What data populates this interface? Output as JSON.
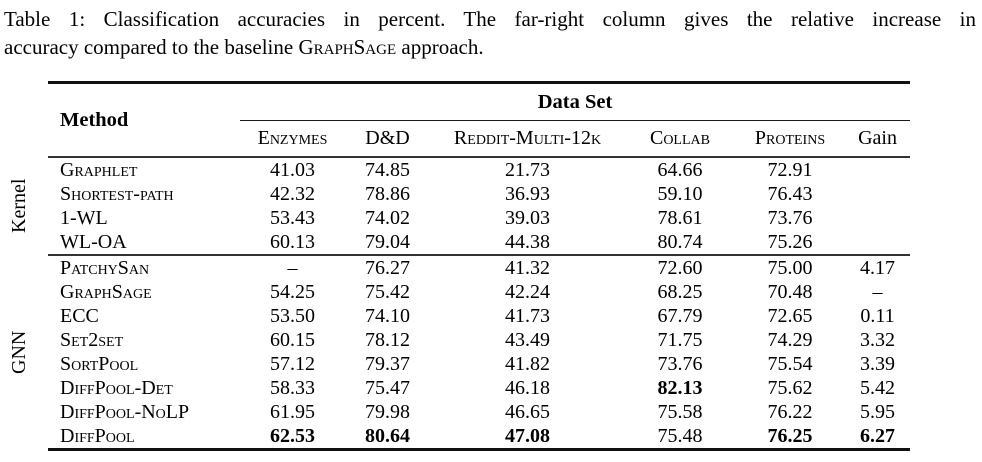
{
  "colors": {
    "text": "#000000",
    "background": "#ffffff",
    "rule": "#111111"
  },
  "caption": {
    "line1": "Table 1: Classification accuracies in percent. The far-right column gives the relative increase in",
    "line2_pre": "accuracy compared to the baseline ",
    "line2_brand": "GraphSage",
    "line2_post": " approach."
  },
  "table": {
    "method_header": "Method",
    "dataset_header": "Data Set",
    "columns": [
      {
        "label": "Enzymes",
        "smallcaps": true
      },
      {
        "label": "D&D",
        "smallcaps": true
      },
      {
        "label": "Reddit-Multi-12k",
        "smallcaps": true
      },
      {
        "label": "Collab",
        "smallcaps": true
      },
      {
        "label": "Proteins",
        "smallcaps": true
      },
      {
        "label": "Gain",
        "smallcaps": false
      }
    ],
    "groups": [
      {
        "label": "Kernel",
        "rows": [
          {
            "method": "Graphlet",
            "values": [
              "41.03",
              "74.85",
              "21.73",
              "64.66",
              "72.91",
              ""
            ],
            "bold": []
          },
          {
            "method": "Shortest-path",
            "values": [
              "42.32",
              "78.86",
              "36.93",
              "59.10",
              "76.43",
              ""
            ],
            "bold": []
          },
          {
            "method": "1-WL",
            "values": [
              "53.43",
              "74.02",
              "39.03",
              "78.61",
              "73.76",
              ""
            ],
            "bold": []
          },
          {
            "method": "WL-OA",
            "values": [
              "60.13",
              "79.04",
              "44.38",
              "80.74",
              "75.26",
              ""
            ],
            "bold": []
          }
        ]
      },
      {
        "label": "GNN",
        "rows": [
          {
            "method": "PatchySan",
            "values": [
              "–",
              "76.27",
              "41.32",
              "72.60",
              "75.00",
              "4.17"
            ],
            "bold": []
          },
          {
            "method": "GraphSage",
            "values": [
              "54.25",
              "75.42",
              "42.24",
              "68.25",
              "70.48",
              "–"
            ],
            "bold": []
          },
          {
            "method": "ECC",
            "values": [
              "53.50",
              "74.10",
              "41.73",
              "67.79",
              "72.65",
              "0.11"
            ],
            "bold": []
          },
          {
            "method": "Set2set",
            "values": [
              "60.15",
              "78.12",
              "43.49",
              "71.75",
              "74.29",
              "3.32"
            ],
            "bold": []
          },
          {
            "method": "SortPool",
            "values": [
              "57.12",
              "79.37",
              "41.82",
              "73.76",
              "75.54",
              "3.39"
            ],
            "bold": []
          },
          {
            "method": "DiffPool-Det",
            "values": [
              "58.33",
              "75.47",
              "46.18",
              "82.13",
              "75.62",
              "5.42"
            ],
            "bold": [
              3
            ]
          },
          {
            "method": "DiffPool-NoLP",
            "values": [
              "61.95",
              "79.98",
              "46.65",
              "75.58",
              "76.22",
              "5.95"
            ],
            "bold": []
          },
          {
            "method": "DiffPool",
            "values": [
              "62.53",
              "80.64",
              "47.08",
              "75.48",
              "76.25",
              "6.27"
            ],
            "bold": [
              0,
              1,
              2,
              4,
              5
            ]
          }
        ]
      }
    ]
  }
}
